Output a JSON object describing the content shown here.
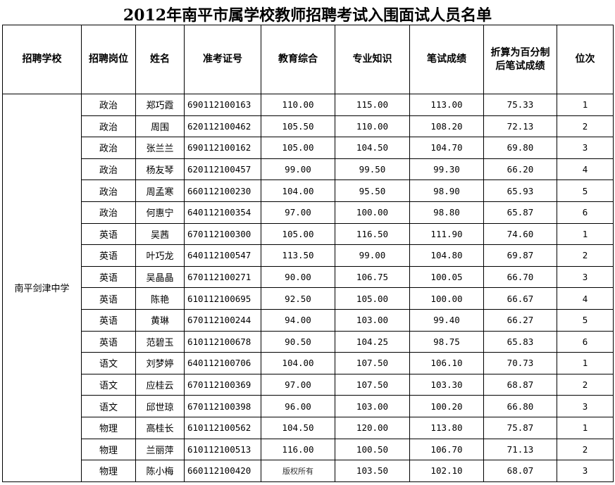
{
  "title": "2012年南平市属学校教师招聘考试入围面试人员名单",
  "headers": [
    "招聘学校",
    "招聘岗位",
    "姓名",
    "准考证号",
    "教育综合",
    "专业知识",
    "笔试成绩",
    "折算为百分制后笔试成绩",
    "位次"
  ],
  "school": "南平剑津中学",
  "rows": [
    [
      "政治",
      "郑巧霞",
      "690112100163",
      "110.00",
      "115.00",
      "113.00",
      "75.33",
      "1"
    ],
    [
      "政治",
      "周围",
      "620112100462",
      "105.50",
      "110.00",
      "108.20",
      "72.13",
      "2"
    ],
    [
      "政治",
      "张兰兰",
      "690112100162",
      "105.00",
      "104.50",
      "104.70",
      "69.80",
      "3"
    ],
    [
      "政治",
      "杨友琴",
      "620112100457",
      "99.00",
      "99.50",
      "99.30",
      "66.20",
      "4"
    ],
    [
      "政治",
      "周孟寒",
      "660112100230",
      "104.00",
      "95.50",
      "98.90",
      "65.93",
      "5"
    ],
    [
      "政治",
      "何惠宁",
      "640112100354",
      "97.00",
      "100.00",
      "98.80",
      "65.87",
      "6"
    ],
    [
      "英语",
      "吴茜",
      "670112100300",
      "105.00",
      "116.50",
      "111.90",
      "74.60",
      "1"
    ],
    [
      "英语",
      "叶巧龙",
      "640112100547",
      "113.50",
      "99.00",
      "104.80",
      "69.87",
      "2"
    ],
    [
      "英语",
      "吴晶晶",
      "670112100271",
      "90.00",
      "106.75",
      "100.05",
      "66.70",
      "3"
    ],
    [
      "英语",
      "陈艳",
      "610112100695",
      "92.50",
      "105.00",
      "100.00",
      "66.67",
      "4"
    ],
    [
      "英语",
      "黄琳",
      "670112100244",
      "94.00",
      "103.00",
      "99.40",
      "66.27",
      "5"
    ],
    [
      "英语",
      "范碧玉",
      "610112100678",
      "90.50",
      "104.25",
      "98.75",
      "65.83",
      "6"
    ],
    [
      "语文",
      "刘梦婷",
      "640112100706",
      "104.00",
      "107.50",
      "106.10",
      "70.73",
      "1"
    ],
    [
      "语文",
      "应桂云",
      "670112100369",
      "97.00",
      "107.50",
      "103.30",
      "68.87",
      "2"
    ],
    [
      "语文",
      "邱世琼",
      "670112100398",
      "96.00",
      "103.00",
      "100.20",
      "66.80",
      "3"
    ],
    [
      "物理",
      "高桂长",
      "610112100562",
      "104.50",
      "120.00",
      "113.80",
      "75.87",
      "1"
    ],
    [
      "物理",
      "兰丽萍",
      "610112100513",
      "116.00",
      "100.50",
      "106.70",
      "71.13",
      "2"
    ],
    [
      "物理",
      "陈小梅",
      "660112100420",
      "",
      "103.50",
      "102.10",
      "68.07",
      "3"
    ]
  ],
  "watermark": "版权所有"
}
